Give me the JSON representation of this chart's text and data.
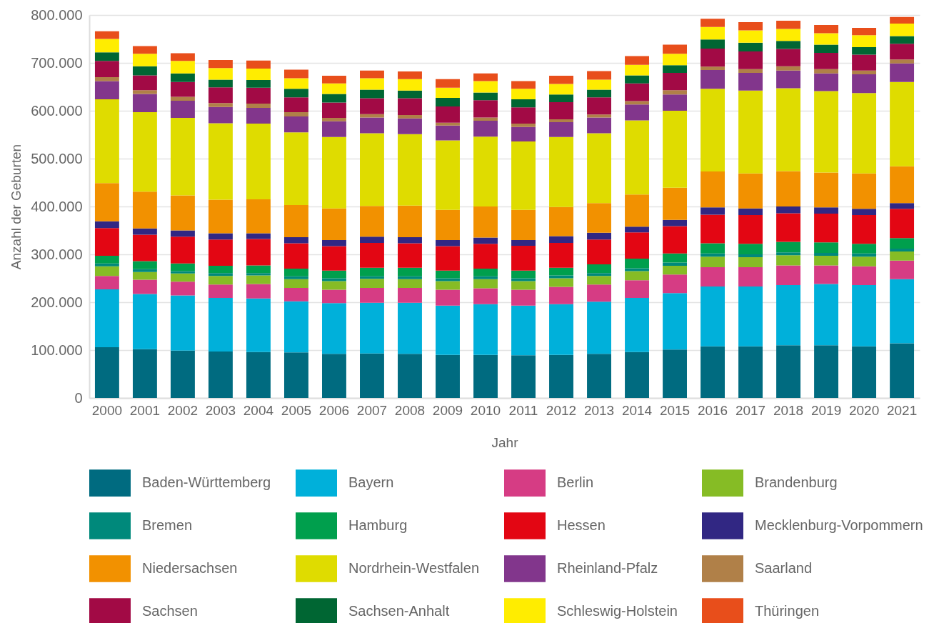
{
  "chart_data": {
    "type": "bar",
    "stacked": true,
    "xlabel": "Jahr",
    "ylabel": "Anzahl der Geburten",
    "categories": [
      "2000",
      "2001",
      "2002",
      "2003",
      "2004",
      "2005",
      "2006",
      "2007",
      "2008",
      "2009",
      "2010",
      "2011",
      "2012",
      "2013",
      "2014",
      "2015",
      "2016",
      "2017",
      "2018",
      "2019",
      "2020",
      "2021"
    ],
    "series": [
      {
        "name": "Baden-Württemberg",
        "color": "#006b80",
        "values": [
          106000,
          102000,
          99000,
          97000,
          96000,
          95000,
          92000,
          93000,
          92000,
          90000,
          90000,
          89000,
          90000,
          92000,
          96000,
          101000,
          108000,
          108000,
          110000,
          110000,
          108000,
          114000
        ]
      },
      {
        "name": "Bayern",
        "color": "#00b0da",
        "values": [
          121000,
          115000,
          115000,
          112000,
          112000,
          107000,
          106000,
          106000,
          107000,
          103000,
          106000,
          104000,
          106000,
          109000,
          113000,
          118000,
          125000,
          125000,
          126000,
          128000,
          128000,
          134000
        ]
      },
      {
        "name": "Berlin",
        "color": "#d63c84",
        "values": [
          28000,
          30000,
          29000,
          28000,
          30000,
          28000,
          28000,
          31000,
          31000,
          33000,
          33000,
          33000,
          36000,
          36000,
          37000,
          39000,
          40000,
          40000,
          41000,
          39000,
          39000,
          39000
        ]
      },
      {
        "name": "Brandenburg",
        "color": "#86bc25",
        "values": [
          20000,
          16000,
          17000,
          18000,
          18000,
          18000,
          18000,
          19000,
          18000,
          18000,
          19000,
          18000,
          18000,
          18000,
          19000,
          18000,
          22000,
          21000,
          21000,
          20000,
          20000,
          19000
        ]
      },
      {
        "name": "Bremen",
        "color": "#00897b",
        "values": [
          6000,
          6000,
          5000,
          6000,
          5000,
          6000,
          6000,
          5000,
          6000,
          6000,
          6000,
          6000,
          6000,
          6000,
          6000,
          7000,
          7000,
          6000,
          6000,
          6000,
          7000,
          6000
        ]
      },
      {
        "name": "Hamburg",
        "color": "#009f4d",
        "values": [
          16000,
          17000,
          16000,
          15000,
          16000,
          16000,
          16000,
          18000,
          18000,
          16000,
          16000,
          16000,
          16000,
          18000,
          20000,
          19000,
          21000,
          22000,
          22000,
          22000,
          20000,
          22000
        ]
      },
      {
        "name": "Hessen",
        "color": "#e30613",
        "values": [
          58000,
          55000,
          56000,
          55000,
          55000,
          53000,
          51000,
          52000,
          51000,
          51000,
          52000,
          52000,
          52000,
          52000,
          55000,
          57000,
          60000,
          60000,
          60000,
          60000,
          60000,
          61000
        ]
      },
      {
        "name": "Mecklenburg-Vorpommern",
        "color": "#312783",
        "values": [
          14000,
          13000,
          13000,
          13000,
          12000,
          13000,
          13000,
          13000,
          13000,
          13000,
          13000,
          12000,
          14000,
          14000,
          12000,
          13000,
          15000,
          14000,
          14000,
          13000,
          13000,
          12000
        ]
      },
      {
        "name": "Niedersachsen",
        "color": "#f29100",
        "values": [
          80000,
          77000,
          73000,
          70000,
          71000,
          67000,
          66000,
          64000,
          66000,
          63000,
          65000,
          63000,
          61000,
          62000,
          67000,
          67000,
          75000,
          73000,
          74000,
          73000,
          74000,
          77000
        ]
      },
      {
        "name": "Nordrhein-Westfalen",
        "color": "#dfdc00",
        "values": [
          175000,
          166000,
          162000,
          160000,
          158000,
          152000,
          149000,
          152000,
          149000,
          145000,
          146000,
          143000,
          146000,
          146000,
          155000,
          161000,
          173000,
          173000,
          173000,
          170000,
          168000,
          176000
        ]
      },
      {
        "name": "Rheinland-Pfalz",
        "color": "#82368c",
        "values": [
          38000,
          38000,
          36000,
          34000,
          33000,
          33000,
          33000,
          33000,
          33000,
          31000,
          33000,
          30000,
          31000,
          33000,
          33000,
          34000,
          39000,
          37000,
          37000,
          37000,
          39000,
          39000
        ]
      },
      {
        "name": "Saarland",
        "color": "#b08048",
        "values": [
          8000,
          8000,
          8000,
          8000,
          9000,
          9000,
          7000,
          7000,
          7000,
          6000,
          7000,
          7000,
          6000,
          6000,
          7000,
          9000,
          7000,
          8000,
          9000,
          9000,
          8000,
          8000
        ]
      },
      {
        "name": "Sachsen",
        "color": "#a20a45",
        "values": [
          34000,
          31000,
          31000,
          33000,
          33000,
          31000,
          32000,
          33000,
          35000,
          34000,
          36000,
          34000,
          36000,
          36000,
          37000,
          36000,
          38000,
          37000,
          36000,
          34000,
          33000,
          33000
        ]
      },
      {
        "name": "Sachsen-Anhalt",
        "color": "#006633",
        "values": [
          18000,
          19000,
          18000,
          16000,
          16000,
          18000,
          18000,
          18000,
          16000,
          18000,
          16000,
          17000,
          16000,
          16000,
          17000,
          16000,
          19000,
          18000,
          17000,
          17000,
          16000,
          16000
        ]
      },
      {
        "name": "Schleswig-Holstein",
        "color": "#ffed00",
        "values": [
          28000,
          26000,
          26000,
          24000,
          24000,
          22000,
          22000,
          24000,
          24000,
          21000,
          24000,
          22000,
          22000,
          21000,
          22000,
          24000,
          26000,
          26000,
          25000,
          24000,
          25000,
          26000
        ]
      },
      {
        "name": "Thüringen",
        "color": "#e84e1b",
        "values": [
          16000,
          16000,
          16000,
          17000,
          17000,
          18000,
          16000,
          16000,
          16000,
          18000,
          16000,
          16000,
          17000,
          18000,
          18000,
          19000,
          17000,
          17000,
          17000,
          17000,
          15000,
          14000
        ]
      }
    ],
    "ylim": [
      0,
      800000
    ],
    "yticks": [
      0,
      {
        "value": 100000,
        "label": "100.000"
      },
      {
        "value": 200000,
        "label": "200.000"
      },
      {
        "value": 300000,
        "label": "300.000"
      },
      {
        "value": 400000,
        "label": "400.000"
      },
      {
        "value": 500000,
        "label": "500.000"
      },
      {
        "value": 600000,
        "label": "600.000"
      },
      {
        "value": 700000,
        "label": "700.000"
      },
      {
        "value": 800000,
        "label": "800.000"
      }
    ],
    "grid": "y",
    "legend": "bottom"
  }
}
